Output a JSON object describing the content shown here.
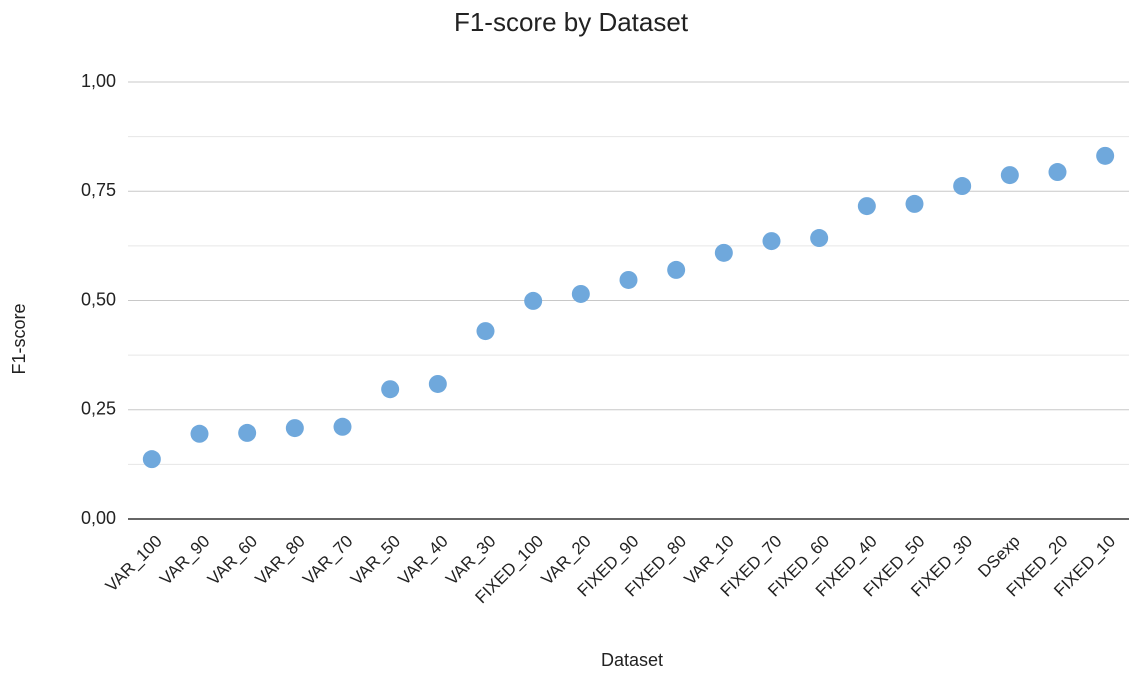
{
  "chart_data": {
    "type": "dot",
    "title": "F1-score by Dataset",
    "x_label": "Dataset",
    "y_label": "F1-score",
    "categories": [
      "VAR_100",
      "VAR_90",
      "VAR_60",
      "VAR_80",
      "VAR_70",
      "VAR_50",
      "VAR_40",
      "VAR_30",
      "FIXED_100",
      "VAR_20",
      "FIXED_90",
      "FIXED_80",
      "VAR_10",
      "FIXED_70",
      "FIXED_60",
      "FIXED_40",
      "FIXED_50",
      "FIXED_30",
      "DSexp",
      "FIXED_20",
      "FIXED_10"
    ],
    "values": [
      0.137,
      0.195,
      0.197,
      0.208,
      0.211,
      0.297,
      0.309,
      0.43,
      0.499,
      0.515,
      0.547,
      0.57,
      0.609,
      0.636,
      0.643,
      0.716,
      0.721,
      0.762,
      0.787,
      0.794,
      0.831
    ],
    "color": "#6fa8dc",
    "ylim": [
      0,
      1
    ],
    "yticks": [
      {
        "value": 0,
        "label": "0,00"
      },
      {
        "value": 0.25,
        "label": "0,25"
      },
      {
        "value": 0.5,
        "label": "0,50"
      },
      {
        "value": 0.75,
        "label": "0,75"
      },
      {
        "value": 1,
        "label": "1,00"
      }
    ],
    "minor_yticks": [
      0.125,
      0.375,
      0.625,
      0.875
    ],
    "grid": true
  }
}
